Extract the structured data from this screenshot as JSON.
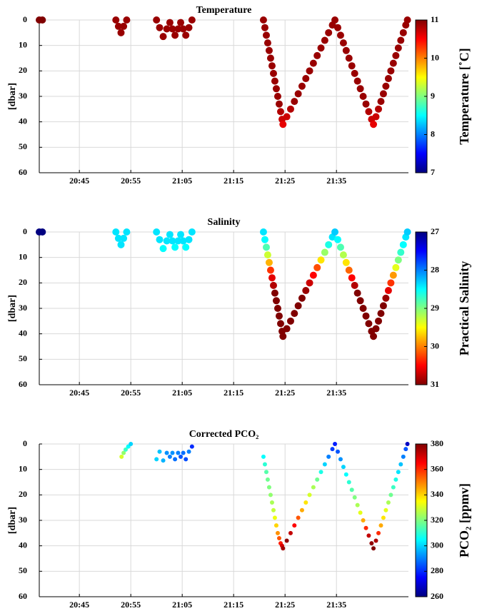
{
  "chart_data": [
    {
      "type": "scatter",
      "title": "Temperature",
      "y_label": "[dbar]",
      "colorbar_label": "Temperature [˚C]",
      "x": [
        1237.2,
        1237.8,
        1252.1,
        1252.6,
        1253.1,
        1253.6,
        1254.2,
        1260.0,
        1260.6,
        1261.3,
        1262.0,
        1262.6,
        1263.1,
        1263.6,
        1264.2,
        1264.7,
        1265.2,
        1265.7,
        1266.3,
        1266.9,
        1280.8,
        1281.08,
        1281.36,
        1281.63,
        1281.91,
        1282.19,
        1282.47,
        1282.75,
        1283.02,
        1283.3,
        1283.58,
        1283.86,
        1284.14,
        1284.42,
        1284.6,
        1285.34,
        1286.08,
        1286.82,
        1287.56,
        1288.3,
        1289.04,
        1289.77,
        1290.51,
        1291.25,
        1291.99,
        1292.73,
        1293.47,
        1294.21,
        1294.7,
        1295.25,
        1295.8,
        1296.35,
        1296.89,
        1297.44,
        1297.99,
        1298.54,
        1299.09,
        1299.64,
        1300.19,
        1300.74,
        1301.28,
        1301.83,
        1302.2,
        1302.68,
        1303.17,
        1303.65,
        1304.13,
        1304.61,
        1305.1,
        1305.58,
        1306.06,
        1306.55,
        1307.03,
        1307.51,
        1308.0,
        1308.48,
        1308.8
      ],
      "y": [
        0,
        0,
        0,
        2.5,
        5,
        2.5,
        0,
        0,
        3,
        6.5,
        3.5,
        1,
        3.5,
        6,
        3.5,
        1,
        3.5,
        6,
        3,
        0,
        0,
        3,
        6,
        9,
        12,
        15,
        18,
        21,
        24,
        27,
        30,
        33,
        36,
        39,
        41,
        38,
        35,
        32,
        29,
        26,
        23,
        20,
        17,
        14,
        11,
        8,
        5,
        2,
        0,
        3,
        6,
        9,
        12,
        15,
        18,
        21,
        24,
        27,
        30,
        33,
        36,
        39,
        41,
        38,
        35,
        32,
        29,
        26,
        23,
        20,
        17,
        14,
        11,
        8,
        5,
        2,
        0
      ],
      "c": [
        11,
        11,
        10.9,
        10.9,
        10.9,
        10.9,
        10.9,
        10.9,
        10.9,
        10.9,
        10.9,
        10.9,
        10.9,
        10.9,
        10.9,
        10.9,
        10.9,
        10.9,
        10.9,
        10.9,
        10.9,
        10.9,
        10.9,
        10.9,
        10.9,
        10.9,
        10.9,
        10.9,
        10.9,
        10.9,
        10.9,
        10.9,
        10.8,
        10.7,
        10.6,
        10.7,
        10.8,
        10.9,
        10.9,
        10.9,
        10.9,
        10.9,
        10.9,
        10.9,
        10.9,
        10.9,
        10.9,
        10.9,
        10.9,
        10.9,
        10.9,
        10.9,
        10.9,
        10.9,
        10.9,
        10.9,
        10.9,
        10.9,
        10.9,
        10.9,
        10.8,
        10.7,
        10.6,
        10.7,
        10.8,
        10.9,
        10.9,
        10.9,
        10.9,
        10.9,
        10.9,
        10.9,
        10.9,
        10.9,
        10.9,
        10.9,
        10.9
      ],
      "xlim": [
        1237.2,
        1309
      ],
      "xticks": [
        {
          "value": 1245,
          "label": "20:45"
        },
        {
          "value": 1255,
          "label": "20:55"
        },
        {
          "value": 1265,
          "label": "21:05"
        },
        {
          "value": 1275,
          "label": "21:15"
        },
        {
          "value": 1285,
          "label": "21:25"
        },
        {
          "value": 1295,
          "label": "21:35"
        }
      ],
      "ylim": [
        0,
        60
      ],
      "yticks": [
        0,
        10,
        20,
        30,
        40,
        50,
        60
      ],
      "y_reversed": true,
      "clim": [
        7,
        11
      ],
      "cticks": [
        7,
        8,
        9,
        10,
        11
      ],
      "colorbar_reversed": false,
      "colormap": "jet",
      "marker_size": 5,
      "grid": true
    },
    {
      "type": "scatter",
      "title": "Salinity",
      "y_label": "[dbar]",
      "colorbar_label": "Practical Salinity",
      "x": [
        1237.2,
        1237.8,
        1252.1,
        1252.6,
        1253.1,
        1253.6,
        1254.2,
        1260.0,
        1260.6,
        1261.3,
        1262.0,
        1262.6,
        1263.1,
        1263.6,
        1264.2,
        1264.7,
        1265.2,
        1265.7,
        1266.3,
        1266.9,
        1280.8,
        1281.08,
        1281.36,
        1281.63,
        1281.91,
        1282.19,
        1282.47,
        1282.75,
        1283.02,
        1283.3,
        1283.58,
        1283.86,
        1284.14,
        1284.42,
        1284.6,
        1285.34,
        1286.08,
        1286.82,
        1287.56,
        1288.3,
        1289.04,
        1289.77,
        1290.51,
        1291.25,
        1291.99,
        1292.73,
        1293.47,
        1294.21,
        1294.7,
        1295.25,
        1295.8,
        1296.35,
        1296.89,
        1297.44,
        1297.99,
        1298.54,
        1299.09,
        1299.64,
        1300.19,
        1300.74,
        1301.28,
        1301.83,
        1302.2,
        1302.68,
        1303.17,
        1303.65,
        1304.13,
        1304.61,
        1305.1,
        1305.58,
        1306.06,
        1306.55,
        1307.03,
        1307.51,
        1308.0,
        1308.48,
        1308.8
      ],
      "y": [
        0,
        0,
        0,
        2.5,
        5,
        2.5,
        0,
        0,
        3,
        6.5,
        3.5,
        1,
        3.5,
        6,
        3.5,
        1,
        3.5,
        6,
        3,
        0,
        0,
        3,
        6,
        9,
        12,
        15,
        18,
        21,
        24,
        27,
        30,
        33,
        36,
        39,
        41,
        38,
        35,
        32,
        29,
        26,
        23,
        20,
        17,
        14,
        11,
        8,
        5,
        2,
        0,
        3,
        6,
        9,
        12,
        15,
        18,
        21,
        24,
        27,
        30,
        33,
        36,
        39,
        41,
        38,
        35,
        32,
        29,
        26,
        23,
        20,
        17,
        14,
        11,
        8,
        5,
        2,
        0
      ],
      "c": [
        27,
        27,
        28.4,
        28.4,
        28.4,
        28.4,
        28.4,
        28.4,
        28.4,
        28.5,
        28.4,
        28.4,
        28.4,
        28.5,
        28.4,
        28.4,
        28.4,
        28.5,
        28.4,
        28.4,
        28.4,
        28.5,
        28.8,
        29.3,
        29.8,
        30.3,
        30.6,
        30.8,
        31,
        31,
        31,
        31,
        31,
        31,
        31,
        31,
        31,
        31,
        31,
        31,
        30.9,
        30.7,
        30.5,
        30.2,
        29.6,
        29.1,
        28.6,
        28.4,
        28.3,
        28.5,
        28.8,
        29.2,
        29.6,
        30.1,
        30.5,
        30.8,
        31,
        31,
        31,
        31,
        31,
        31,
        31,
        31,
        31,
        31,
        31,
        30.9,
        30.6,
        30.3,
        29.9,
        29.4,
        29,
        28.7,
        28.5,
        28.4,
        28.3
      ],
      "xlim": [
        1237.2,
        1309
      ],
      "xticks": [
        {
          "value": 1245,
          "label": "20:45"
        },
        {
          "value": 1255,
          "label": "20:55"
        },
        {
          "value": 1265,
          "label": "21:05"
        },
        {
          "value": 1275,
          "label": "21:15"
        },
        {
          "value": 1285,
          "label": "21:25"
        },
        {
          "value": 1295,
          "label": "21:35"
        }
      ],
      "ylim": [
        0,
        60
      ],
      "yticks": [
        0,
        10,
        20,
        30,
        40,
        50,
        60
      ],
      "y_reversed": true,
      "clim": [
        27,
        31
      ],
      "cticks": [
        27,
        28,
        29,
        30,
        31
      ],
      "colorbar_reversed": true,
      "colormap": "jet",
      "marker_size": 5,
      "grid": true
    },
    {
      "type": "scatter",
      "title": "Corrected PCO₂",
      "y_label": "[dbar]",
      "colorbar_label": "PCO₂ [ppmv]",
      "x": [
        1253.2,
        1253.6,
        1254.0,
        1254.5,
        1255.0,
        1260.0,
        1260.6,
        1261.3,
        1262.0,
        1262.6,
        1263.1,
        1263.6,
        1264.2,
        1264.7,
        1265.2,
        1265.7,
        1266.3,
        1266.9,
        1280.8,
        1281.08,
        1281.36,
        1281.63,
        1281.91,
        1282.19,
        1282.47,
        1282.75,
        1283.02,
        1283.3,
        1283.58,
        1283.86,
        1284.14,
        1284.42,
        1284.6,
        1285.34,
        1286.08,
        1286.82,
        1287.56,
        1288.3,
        1289.04,
        1289.77,
        1290.51,
        1291.25,
        1291.99,
        1292.73,
        1293.47,
        1294.21,
        1294.7,
        1295.25,
        1295.8,
        1296.35,
        1296.89,
        1297.44,
        1297.99,
        1298.54,
        1299.09,
        1299.64,
        1300.19,
        1300.74,
        1301.28,
        1301.83,
        1302.2,
        1302.68,
        1303.17,
        1303.65,
        1304.13,
        1304.61,
        1305.1,
        1305.58,
        1306.06,
        1306.55,
        1307.03,
        1307.51,
        1308.0,
        1308.48,
        1308.8
      ],
      "y": [
        5,
        3.5,
        2.2,
        1,
        0,
        6,
        3,
        6.5,
        3.5,
        5,
        3.5,
        6,
        3.5,
        5,
        3.5,
        6,
        3,
        1,
        5,
        8,
        11,
        14,
        17,
        20,
        23,
        26,
        29,
        32,
        35,
        37,
        39,
        40,
        41,
        38,
        35,
        32,
        29,
        26,
        23,
        20,
        17,
        14,
        11,
        8,
        5,
        2,
        0,
        3,
        6,
        9,
        12,
        15,
        18,
        21,
        24,
        27,
        30,
        33,
        36,
        39,
        41,
        38,
        35,
        32,
        29,
        26,
        23,
        20,
        17,
        14,
        11,
        8,
        5,
        2,
        0
      ],
      "c": [
        330,
        322,
        312,
        305,
        300,
        300,
        298,
        296,
        292,
        290,
        292,
        288,
        290,
        285,
        288,
        284,
        290,
        280,
        305,
        310,
        315,
        318,
        320,
        322,
        325,
        328,
        333,
        340,
        348,
        355,
        362,
        370,
        376,
        378,
        372,
        365,
        355,
        345,
        338,
        330,
        325,
        318,
        308,
        300,
        290,
        282,
        278,
        285,
        292,
        300,
        305,
        310,
        315,
        320,
        325,
        332,
        345,
        360,
        372,
        378,
        380,
        375,
        360,
        345,
        338,
        332,
        325,
        318,
        312,
        308,
        302,
        298,
        290,
        285,
        268
      ],
      "xlim": [
        1237.2,
        1309
      ],
      "xticks": [
        {
          "value": 1245,
          "label": "20:45"
        },
        {
          "value": 1255,
          "label": "20:55"
        },
        {
          "value": 1265,
          "label": "21:05"
        },
        {
          "value": 1275,
          "label": "21:15"
        },
        {
          "value": 1285,
          "label": "21:25"
        },
        {
          "value": 1295,
          "label": "21:35"
        }
      ],
      "ylim": [
        0,
        60
      ],
      "yticks": [
        0,
        10,
        20,
        30,
        40,
        50,
        60
      ],
      "y_reversed": true,
      "clim": [
        260,
        380
      ],
      "cticks": [
        260,
        280,
        300,
        320,
        340,
        360,
        380
      ],
      "colorbar_reversed": false,
      "colormap": "jet",
      "marker_size": 3,
      "grid": true
    }
  ]
}
